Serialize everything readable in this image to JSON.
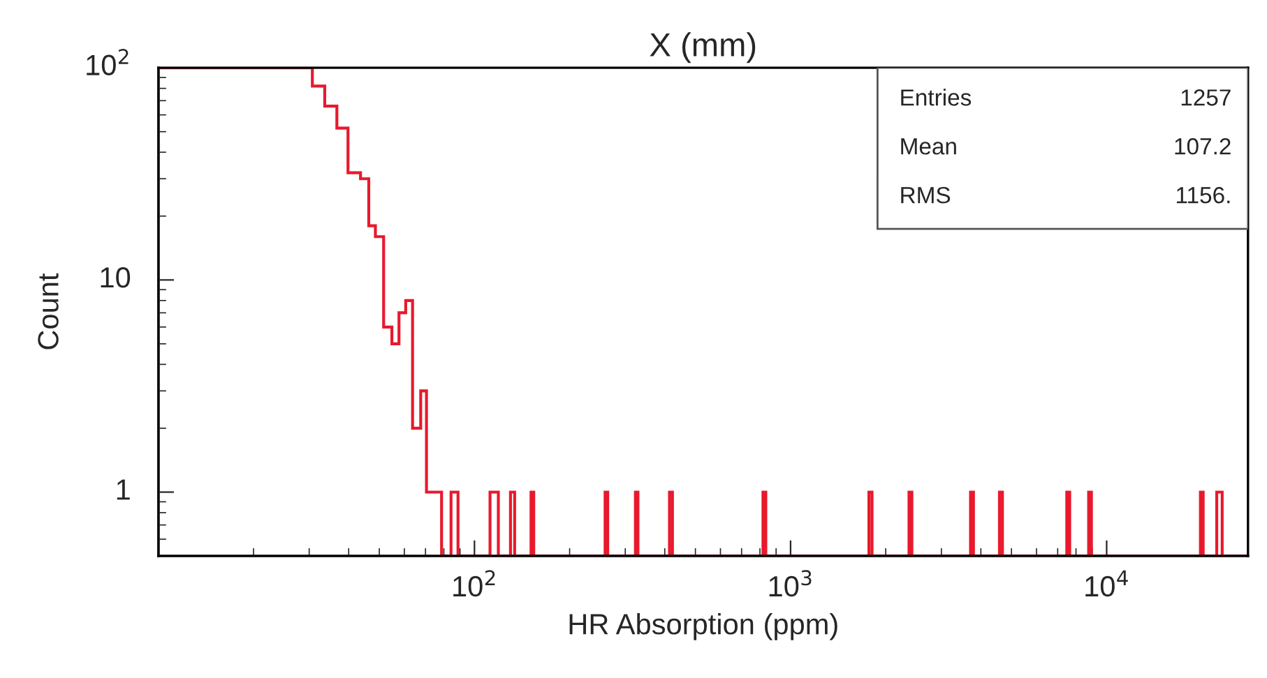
{
  "chart_data": {
    "type": "histogram",
    "title": "X (mm)",
    "xlabel": "HR Absorption (ppm)",
    "ylabel": "Count",
    "bins": [
      10,
      30.7,
      33.6,
      36.7,
      39.8,
      43.6,
      46.3,
      48.6,
      51.6,
      54.8,
      57.7,
      60.6,
      63.7,
      67.6,
      70.5,
      78.7,
      84.3,
      88.7,
      112,
      119,
      130,
      134,
      151,
      154,
      259,
      264,
      323,
      329,
      414,
      423,
      818,
      835,
      1770,
      1810,
      2370,
      2420,
      3710,
      3790,
      4580,
      4680,
      7480,
      7640,
      8770,
      8950,
      19800,
      20200,
      22300,
      23200,
      28000
    ],
    "values": [
      100,
      82,
      66,
      52,
      32,
      30,
      18,
      16,
      6,
      5,
      7,
      8,
      2,
      3,
      1,
      null,
      1,
      null,
      1,
      null,
      1,
      null,
      1,
      null,
      1,
      null,
      1,
      null,
      1,
      null,
      1,
      null,
      1,
      null,
      1,
      null,
      1,
      null,
      1,
      null,
      1,
      null,
      1,
      null,
      1,
      null,
      1,
      null
    ],
    "color": "#e8192c",
    "log": "xy",
    "xlim": [
      10,
      28000
    ],
    "ylim": [
      0.5,
      100
    ],
    "xticks": [
      {
        "value": 100,
        "label": "10$^{2}$"
      },
      {
        "value": 1000,
        "label": "10$^{3}$"
      },
      {
        "value": 10000,
        "label": "10$^{4}$"
      }
    ],
    "yticks": [
      1,
      10,
      {
        "value": 100,
        "label": "10$^{2}$"
      }
    ],
    "grid": false,
    "annotations": [
      "Entries",
      "1257",
      "Mean",
      "107.2",
      "RMS",
      "1156."
    ]
  }
}
